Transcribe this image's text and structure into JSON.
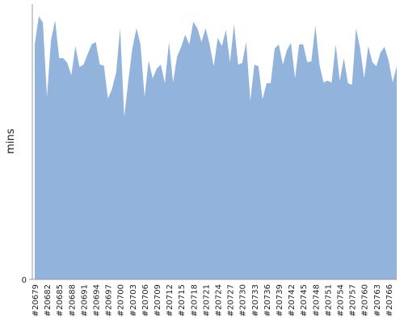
{
  "chart_data": {
    "type": "area",
    "y_label": "mins",
    "color": "#92b3dc",
    "ylim": [
      0,
      34.1
    ],
    "yticks": [
      0
    ],
    "categories": [
      "#20679",
      null,
      null,
      "#20682",
      null,
      null,
      "#20685",
      null,
      null,
      "#20688",
      null,
      null,
      "#20691",
      null,
      null,
      "#20694",
      null,
      null,
      "#20697",
      null,
      null,
      "#20700",
      null,
      null,
      "#20703",
      null,
      null,
      "#20706",
      null,
      null,
      "#20709",
      null,
      null,
      "#20712",
      null,
      null,
      "#20715",
      null,
      null,
      "#20718",
      null,
      null,
      "#20721",
      null,
      null,
      "#20724",
      null,
      null,
      "#20727",
      null,
      null,
      "#20730",
      null,
      null,
      "#20733",
      null,
      null,
      "#20736",
      null,
      null,
      "#20739",
      null,
      null,
      "#20742",
      null,
      null,
      "#20745",
      null,
      null,
      "#20748",
      null,
      null,
      "#20751",
      null,
      null,
      "#20754",
      null,
      null,
      "#20757",
      null,
      null,
      "#20760",
      null,
      null,
      "#20763",
      null,
      null,
      "#20766",
      null,
      null
    ],
    "values": [
      29.1,
      32.6,
      31.8,
      22.6,
      29.6,
      32.1,
      27.4,
      27.4,
      26.8,
      25.3,
      28.9,
      26.3,
      26.6,
      27.9,
      29.1,
      29.4,
      26.6,
      26.5,
      22.4,
      23.6,
      25.6,
      31.1,
      20.1,
      24.6,
      28.6,
      31.1,
      29.1,
      22.6,
      27.1,
      24.9,
      26.1,
      26.6,
      24.3,
      29.4,
      24.4,
      27.6,
      28.8,
      30.3,
      29.1,
      31.9,
      31.1,
      29.4,
      31.1,
      29.1,
      26.4,
      29.9,
      28.9,
      30.9,
      26.9,
      31.6,
      26.6,
      26.8,
      29.4,
      22.1,
      26.6,
      26.4,
      22.3,
      24.3,
      24.3,
      28.6,
      29.1,
      26.6,
      28.4,
      29.3,
      24.9,
      29.1,
      29.1,
      26.9,
      27.0,
      31.4,
      26.6,
      24.4,
      24.6,
      24.4,
      29.1,
      24.6,
      27.4,
      24.3,
      24.1,
      31.1,
      28.6,
      24.9,
      28.9,
      26.9,
      26.4,
      28.1,
      28.8,
      27.1,
      24.4,
      26.4
    ]
  }
}
